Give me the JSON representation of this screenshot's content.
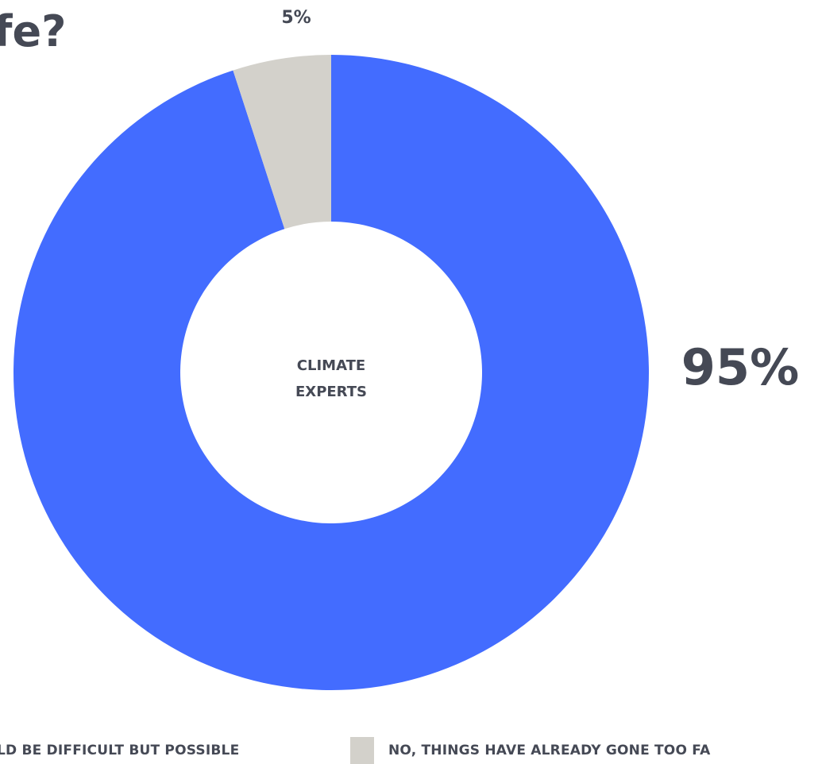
{
  "title": {
    "line1": "",
    "line2": "fe?"
  },
  "colors": {
    "possible": "#436cff",
    "too_far": "#d3d1cb",
    "text": "#454955"
  },
  "chart_data": {
    "type": "pie",
    "donut": true,
    "center_label": [
      "CLIMATE",
      "EXPERTS"
    ],
    "slices": [
      {
        "label": "…LD BE DIFFICULT BUT POSSIBLE",
        "value": 95,
        "display": "95%",
        "color": "#436cff"
      },
      {
        "label": "NO, THINGS HAVE ALREADY GONE TOO FA…",
        "value": 5,
        "display": "5%",
        "color": "#d3d1cb"
      }
    ],
    "legend_position": "bottom"
  },
  "legend": {
    "item1_label": "LD BE DIFFICULT BUT POSSIBLE",
    "item2_label": "NO, THINGS HAVE ALREADY GONE TOO FA"
  }
}
